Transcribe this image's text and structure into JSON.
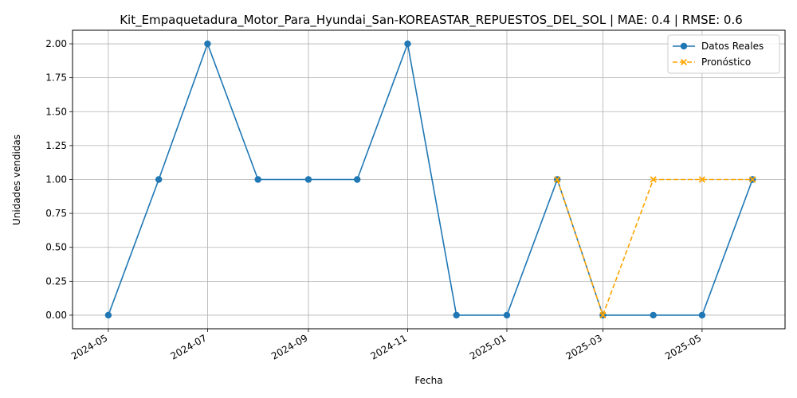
{
  "chart_data": {
    "type": "line",
    "title": "Kit_Empaquetadura_Motor_Para_Hyundai_San-KOREASTAR_REPUESTOS_DEL_SOL | MAE: 0.4 | RMSE: 0.6",
    "xlabel": "Fecha",
    "ylabel": "Unidades vendidas",
    "x_ticks": [
      "2024-05",
      "2024-07",
      "2024-09",
      "2024-11",
      "2025-01",
      "2025-03",
      "2025-05"
    ],
    "x_range": [
      "2024-04-09",
      "2025-06-21"
    ],
    "y_ticks": [
      "0.00",
      "0.25",
      "0.50",
      "0.75",
      "1.00",
      "1.25",
      "1.50",
      "1.75",
      "2.00"
    ],
    "ylim": [
      -0.1,
      2.1
    ],
    "grid": true,
    "legend_position": "top-right",
    "series": [
      {
        "name": "Datos Reales",
        "color": "#1f77b4",
        "marker": "circle",
        "line_style": "solid",
        "points": [
          {
            "x": "2024-05-01",
            "y": 0
          },
          {
            "x": "2024-06-01",
            "y": 1
          },
          {
            "x": "2024-07-01",
            "y": 2
          },
          {
            "x": "2024-08-01",
            "y": 1
          },
          {
            "x": "2024-09-01",
            "y": 1
          },
          {
            "x": "2024-10-01",
            "y": 1
          },
          {
            "x": "2024-11-01",
            "y": 2
          },
          {
            "x": "2024-12-01",
            "y": 0
          },
          {
            "x": "2025-01-01",
            "y": 0
          },
          {
            "x": "2025-02-01",
            "y": 1
          },
          {
            "x": "2025-03-01",
            "y": 0
          },
          {
            "x": "2025-04-01",
            "y": 0
          },
          {
            "x": "2025-05-01",
            "y": 0
          },
          {
            "x": "2025-06-01",
            "y": 1
          }
        ]
      },
      {
        "name": "Pronóstico",
        "color": "#ffa500",
        "marker": "x",
        "line_style": "dashed",
        "points": [
          {
            "x": "2025-02-01",
            "y": 1
          },
          {
            "x": "2025-03-01",
            "y": 0
          },
          {
            "x": "2025-04-01",
            "y": 1
          },
          {
            "x": "2025-05-01",
            "y": 1
          },
          {
            "x": "2025-06-01",
            "y": 1
          }
        ]
      }
    ]
  }
}
